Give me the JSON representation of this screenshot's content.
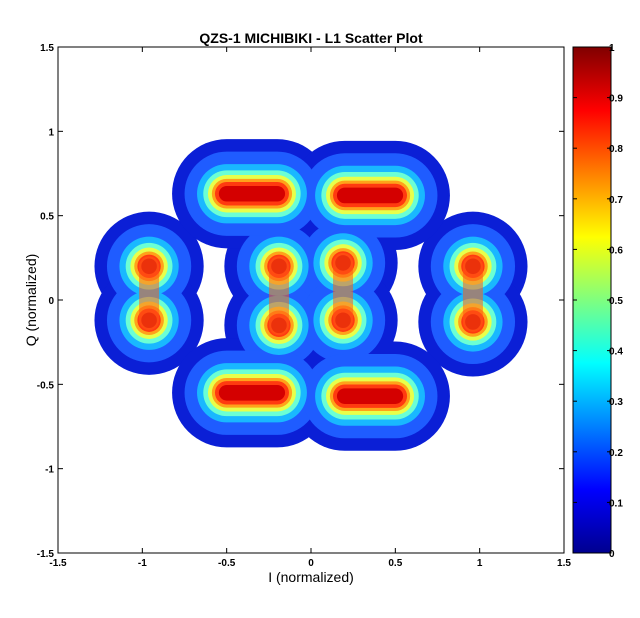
{
  "chart_data": {
    "type": "heatmap",
    "title": "QZS-1 MICHIBIKI - L1 Scatter Plot",
    "xlabel": "I (normalized)",
    "ylabel": "Q (normalized)",
    "xlim": [
      -1.5,
      1.5
    ],
    "ylim": [
      -1.5,
      1.5
    ],
    "x_ticks": [
      "-1.5",
      "-1",
      "-0.5",
      "0",
      "0.5",
      "1",
      "1.5"
    ],
    "x_tick_values": [
      -1.5,
      -1,
      -0.5,
      0,
      0.5,
      1,
      1.5
    ],
    "y_ticks": [
      "-1.5",
      "-1",
      "-0.5",
      "0",
      "0.5",
      "1",
      "1.5"
    ],
    "y_tick_values": [
      -1.5,
      -1,
      -0.5,
      0,
      0.5,
      1,
      1.5
    ],
    "grid": false,
    "colormap": "jet",
    "colorbar": {
      "position": "right",
      "range": [
        0,
        1
      ],
      "ticks": [
        "0",
        "0.1",
        "0.2",
        "0.3",
        "0.4",
        "0.5",
        "0.6",
        "0.7",
        "0.8",
        "0.9",
        "1"
      ],
      "tick_values": [
        0,
        0.1,
        0.2,
        0.3,
        0.4,
        0.5,
        0.6,
        0.7,
        0.8,
        0.9,
        1
      ]
    },
    "clusters": [
      {
        "i": -0.96,
        "q": 0.2
      },
      {
        "i": -0.96,
        "q": -0.12
      },
      {
        "i": -0.19,
        "q": 0.2
      },
      {
        "i": -0.19,
        "q": -0.15
      },
      {
        "i": 0.19,
        "q": 0.22
      },
      {
        "i": 0.19,
        "q": -0.12
      },
      {
        "i": 0.96,
        "q": 0.2
      },
      {
        "i": 0.96,
        "q": -0.13
      },
      {
        "i_start": -0.5,
        "i_end": -0.2,
        "q": 0.63
      },
      {
        "i_start": 0.2,
        "i_end": 0.5,
        "q": 0.62
      },
      {
        "i_start": -0.5,
        "i_end": -0.2,
        "q": -0.55
      },
      {
        "i_start": 0.2,
        "i_end": 0.5,
        "q": -0.57
      }
    ]
  }
}
